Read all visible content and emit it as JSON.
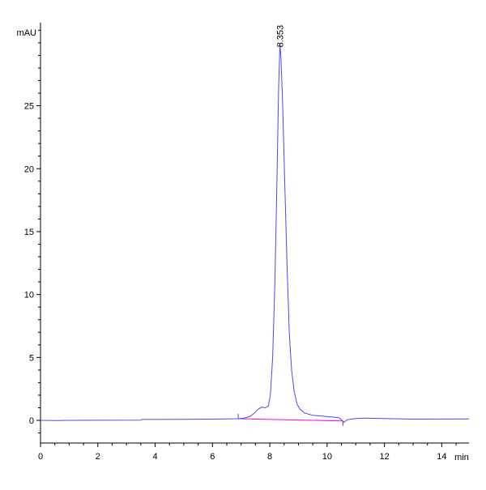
{
  "chart_data": {
    "type": "line",
    "title": "",
    "xlabel": "min",
    "ylabel": "mAU",
    "xlim": [
      0,
      14.95
    ],
    "ylim": [
      -1.8,
      31.6
    ],
    "x_ticks": [
      0,
      2,
      4,
      6,
      8,
      10,
      12,
      14
    ],
    "y_ticks": [
      0,
      5,
      10,
      15,
      20,
      25
    ],
    "x_minor_step": 0.5,
    "y_minor_step": 1,
    "grid": false,
    "series": [
      {
        "color": "#4a4af0",
        "points": [
          [
            0,
            0.0
          ],
          [
            0.6,
            -0.02
          ],
          [
            1,
            0.0
          ],
          [
            3.5,
            0.02
          ],
          [
            3.55,
            0.07
          ],
          [
            5,
            0.08
          ],
          [
            6,
            0.1
          ],
          [
            6.9,
            0.13
          ],
          [
            7.1,
            0.18
          ],
          [
            7.3,
            0.3
          ],
          [
            7.45,
            0.55
          ],
          [
            7.6,
            0.9
          ],
          [
            7.72,
            1.05
          ],
          [
            7.85,
            1.0
          ],
          [
            7.95,
            1.15
          ],
          [
            8.02,
            2.0
          ],
          [
            8.1,
            5.0
          ],
          [
            8.18,
            11.0
          ],
          [
            8.25,
            19.0
          ],
          [
            8.31,
            26.5
          ],
          [
            8.353,
            29.9
          ],
          [
            8.39,
            28.8
          ],
          [
            8.45,
            25.0
          ],
          [
            8.52,
            19.0
          ],
          [
            8.6,
            12.5
          ],
          [
            8.68,
            7.0
          ],
          [
            8.76,
            4.0
          ],
          [
            8.85,
            2.3
          ],
          [
            8.95,
            1.3
          ],
          [
            9.05,
            0.9
          ],
          [
            9.2,
            0.6
          ],
          [
            9.5,
            0.4
          ],
          [
            10.0,
            0.3
          ],
          [
            10.4,
            0.22
          ],
          [
            10.5,
            0.05
          ],
          [
            10.58,
            -0.15
          ],
          [
            10.7,
            0.05
          ],
          [
            10.9,
            0.12
          ],
          [
            11.0,
            0.15
          ],
          [
            11.3,
            0.18
          ],
          [
            12,
            0.15
          ],
          [
            13,
            0.1
          ],
          [
            14.95,
            0.12
          ]
        ]
      }
    ],
    "baseline": {
      "color": "#ff00ff",
      "from": [
        6.9,
        0.13
      ],
      "to": [
        10.55,
        -0.05
      ]
    },
    "peak_labels": [
      {
        "x": 8.353,
        "y": 29.9,
        "text": "8.353"
      }
    ]
  }
}
